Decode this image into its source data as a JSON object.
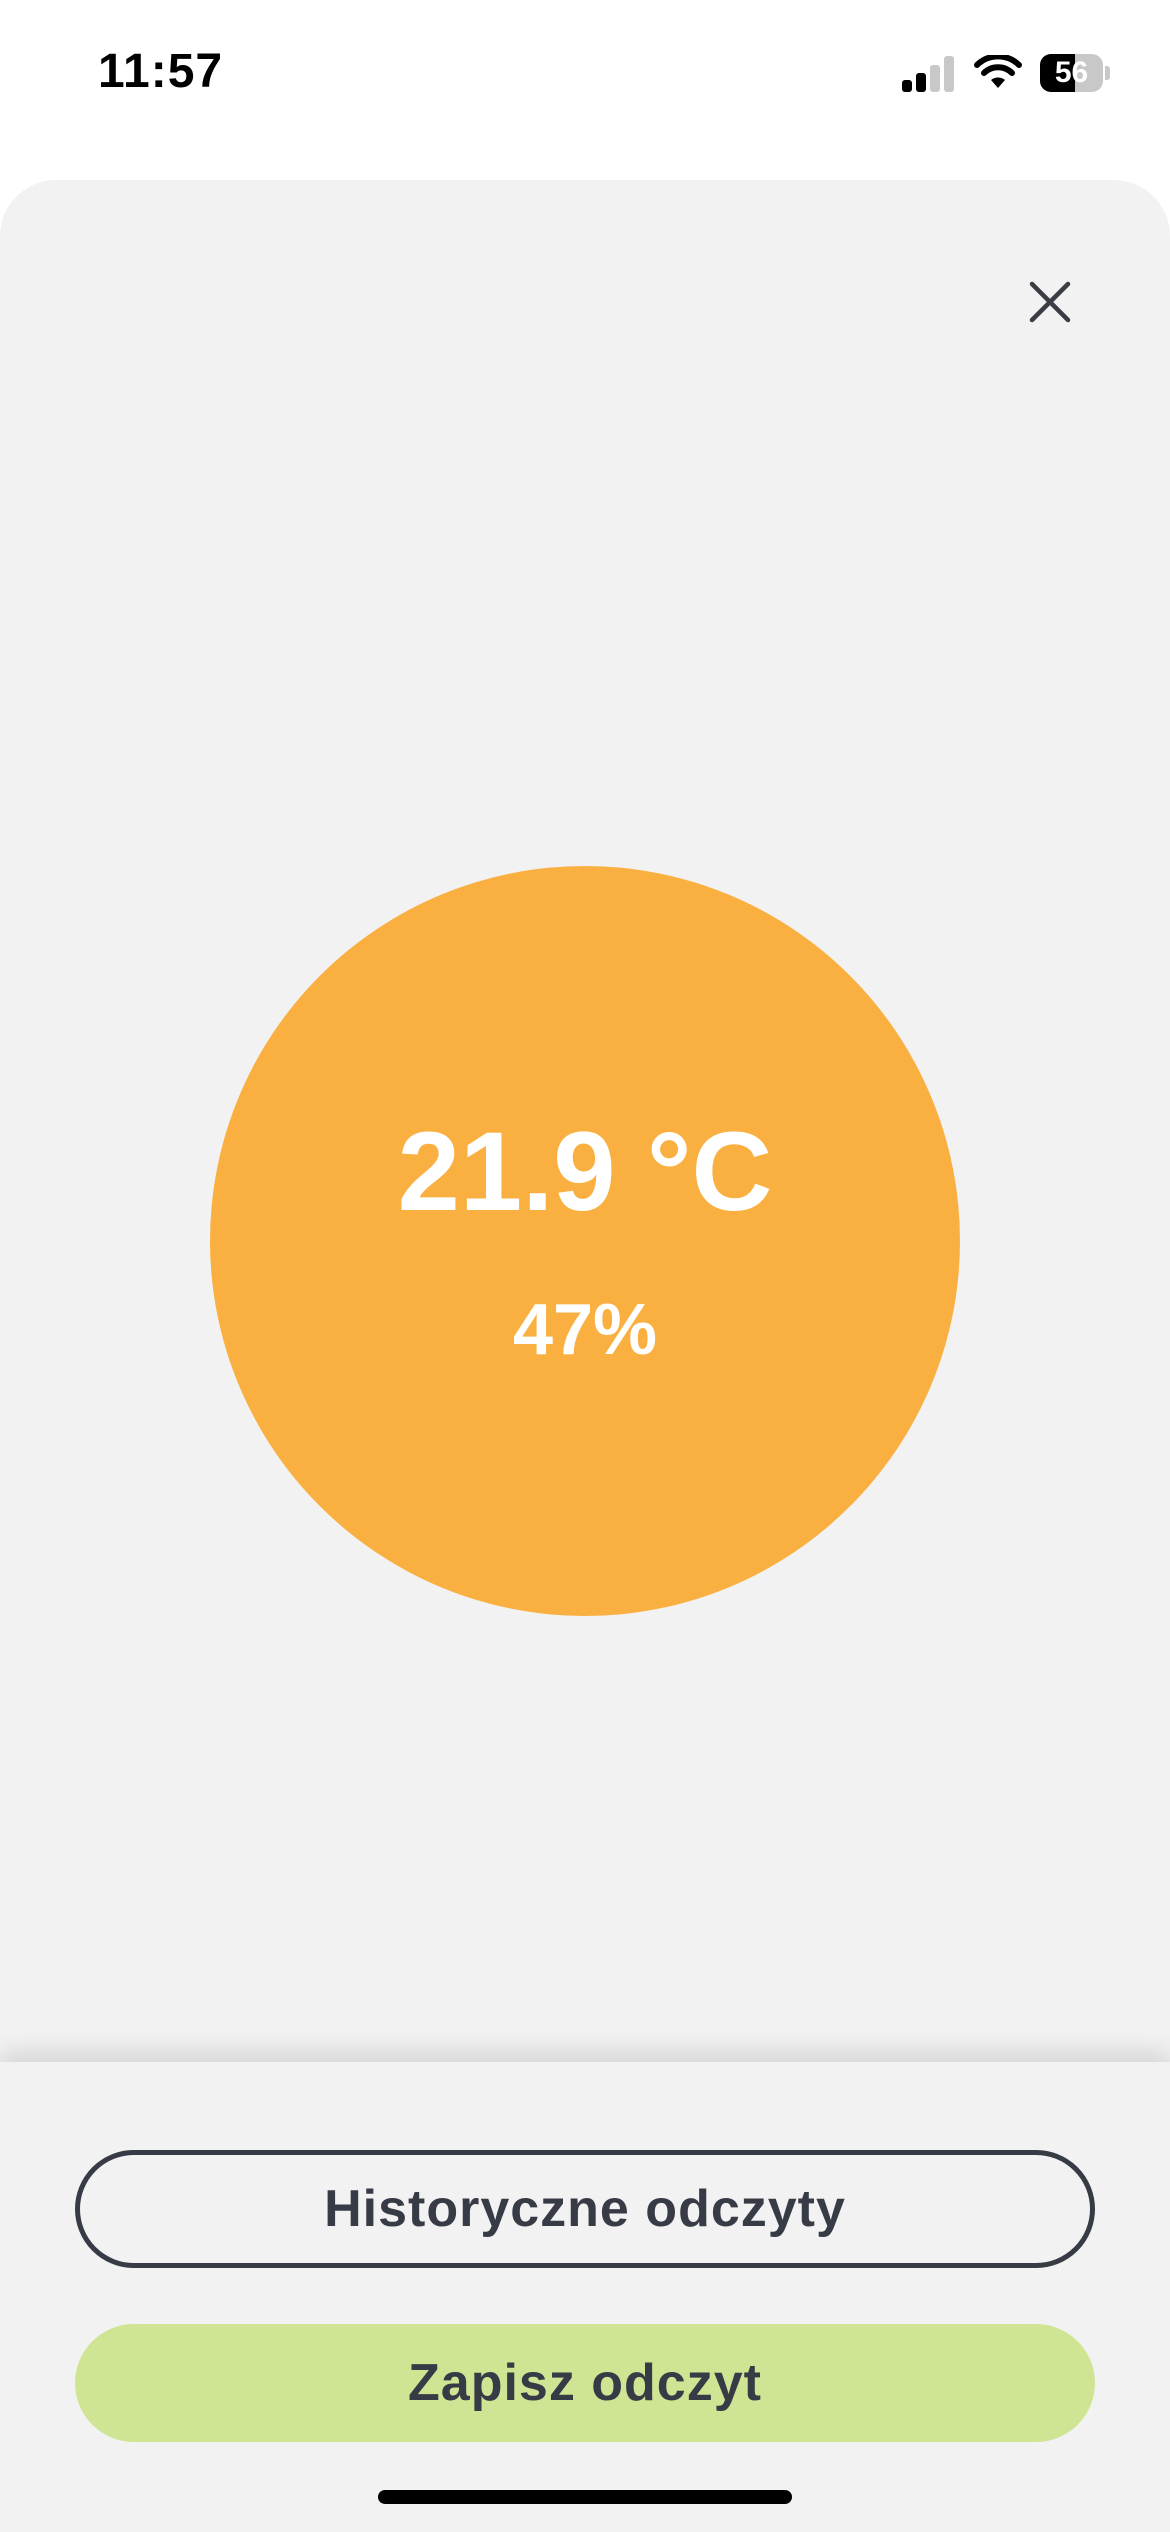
{
  "status_bar": {
    "time": "11:57",
    "battery_level": "56",
    "battery_fraction": 0.56,
    "signal_bars_active": 2,
    "signal_bars_total": 4
  },
  "reading": {
    "temperature": "21.9 °C",
    "humidity": "47%",
    "indicator_color": "#fab041"
  },
  "actions": {
    "history_label": "Historyczne odczyty",
    "save_label": "Zapisz odczyt",
    "save_color": "#d0e593",
    "text_color": "#373b45"
  },
  "icons": {
    "close": "close-icon",
    "signal": "cellular-signal-icon",
    "wifi": "wifi-icon",
    "battery": "battery-icon"
  }
}
